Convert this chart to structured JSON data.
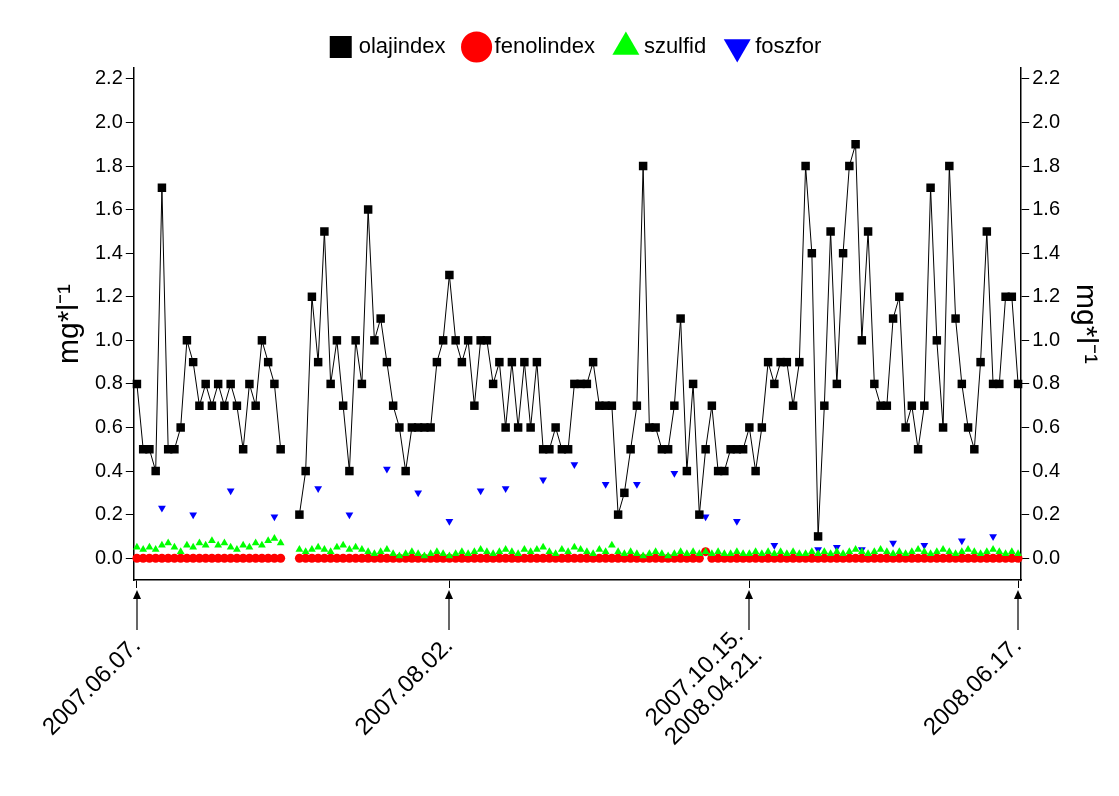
{
  "chart_data": {
    "type": "line",
    "ylabel": "mg*l⁻¹",
    "y2label": "mg*l⁻¹",
    "categories": [
      "2007.06.07.",
      null,
      null,
      null,
      null,
      null,
      null,
      null,
      null,
      null,
      null,
      null,
      null,
      null,
      null,
      null,
      null,
      null,
      null,
      null,
      null,
      null,
      null,
      null,
      null,
      null,
      null,
      null,
      null,
      null,
      null,
      null,
      null,
      null,
      null,
      null,
      null,
      null,
      null,
      null,
      null,
      null,
      null,
      null,
      null,
      null,
      null,
      null,
      null,
      null,
      "2007.08.02.",
      null,
      null,
      null,
      null,
      null,
      null,
      null,
      null,
      null,
      null,
      null,
      null,
      null,
      null,
      null,
      null,
      null,
      null,
      null,
      null,
      null,
      null,
      null,
      null,
      null,
      null,
      null,
      null,
      null,
      null,
      null,
      null,
      null,
      null,
      null,
      null,
      null,
      null,
      null,
      null,
      null,
      null,
      null,
      null,
      null,
      null,
      null,
      "2007.10.15.\n2008.04.21.",
      null,
      null,
      null,
      null,
      null,
      null,
      null,
      null,
      null,
      null,
      null,
      null,
      null,
      null,
      null,
      null,
      null,
      null,
      null,
      null,
      null,
      null,
      null,
      null,
      null,
      null,
      null,
      null,
      null,
      null,
      null,
      null,
      null,
      null,
      null,
      null,
      null,
      null,
      null,
      null,
      null,
      null,
      "2008.06.17."
    ],
    "series": [
      {
        "name": "olajindex",
        "color": "#000000",
        "marker": "square",
        "values": [
          0.8,
          0.5,
          0.5,
          0.4,
          1.7,
          0.5,
          0.5,
          0.6,
          1.0,
          0.9,
          0.7,
          0.8,
          0.7,
          0.8,
          0.7,
          0.8,
          0.7,
          0.5,
          0.8,
          0.7,
          1.0,
          0.9,
          0.8,
          0.5,
          null,
          null,
          0.2,
          0.4,
          1.2,
          0.9,
          1.5,
          0.8,
          1.0,
          0.7,
          0.4,
          1.0,
          0.8,
          1.6,
          1.0,
          1.1,
          0.9,
          0.7,
          0.6,
          0.4,
          0.6,
          0.6,
          0.6,
          0.6,
          0.9,
          1.0,
          1.3,
          1.0,
          0.9,
          1.0,
          0.7,
          1.0,
          1.0,
          0.8,
          0.9,
          0.6,
          0.9,
          0.6,
          0.9,
          0.6,
          0.9,
          0.5,
          0.5,
          0.6,
          0.5,
          0.5,
          0.8,
          0.8,
          0.8,
          0.9,
          0.7,
          0.7,
          0.7,
          0.2,
          0.3,
          0.5,
          0.7,
          1.8,
          0.6,
          0.6,
          0.5,
          0.5,
          0.7,
          1.1,
          0.4,
          0.8,
          0.2,
          0.5,
          0.7,
          0.4,
          0.4,
          0.5,
          0.5,
          0.5,
          0.6,
          0.4,
          0.6,
          0.9,
          0.8,
          0.9,
          0.9,
          0.7,
          0.9,
          1.8,
          1.4,
          0.1,
          0.7,
          1.5,
          0.8,
          1.4,
          1.8,
          1.9,
          1.0,
          1.5,
          0.8,
          0.7,
          0.7,
          1.1,
          1.2,
          0.6,
          0.7,
          0.5,
          0.7,
          1.7,
          1.0,
          0.6,
          1.8,
          1.1,
          0.8,
          0.6,
          0.5,
          0.9,
          1.5,
          0.8,
          0.8,
          1.2,
          1.2,
          0.8
        ]
      },
      {
        "name": "fenolindex",
        "type": "scatter",
        "color": "#ff0000",
        "marker": "circle",
        "values": [
          0,
          0,
          0,
          0,
          0,
          0,
          0,
          0,
          0,
          0,
          0,
          0,
          0,
          0,
          0,
          0,
          0,
          0,
          0,
          0,
          0,
          0,
          0,
          0,
          null,
          null,
          0,
          0,
          0,
          0,
          0,
          0,
          0,
          0,
          0,
          0,
          0,
          0,
          0,
          0,
          0,
          0,
          0,
          0,
          0,
          0,
          0,
          0,
          0,
          0,
          0,
          0,
          0,
          0,
          0,
          0,
          0,
          0,
          0,
          0,
          0,
          0,
          0,
          0,
          0,
          0,
          0,
          0,
          0,
          0,
          0,
          0,
          0,
          0,
          0,
          0,
          0,
          0,
          0,
          0,
          0,
          0,
          0,
          0,
          0,
          0,
          0,
          0,
          0,
          0,
          0,
          0.03,
          0,
          0,
          0,
          0,
          0,
          0,
          0,
          0,
          0,
          0,
          0,
          0,
          0,
          0,
          0,
          0,
          0,
          0,
          0,
          0,
          0,
          0,
          0,
          0,
          0,
          0,
          0,
          0,
          0,
          0,
          0,
          0,
          0,
          0,
          0,
          0,
          0,
          0,
          0,
          0,
          0,
          0,
          0,
          0,
          0,
          0,
          0,
          0,
          0,
          0
        ]
      },
      {
        "name": "szulfid",
        "type": "scatter",
        "color": "#00ff00",
        "marker": "triangle",
        "values": [
          0.05,
          0.04,
          0.05,
          0.04,
          0.06,
          0.07,
          0.05,
          0.03,
          0.06,
          0.05,
          0.07,
          0.06,
          0.08,
          0.06,
          0.07,
          0.05,
          0.04,
          0.06,
          0.05,
          0.07,
          0.06,
          0.08,
          0.09,
          0.07,
          null,
          null,
          0.04,
          0.03,
          0.04,
          0.05,
          0.04,
          0.03,
          0.05,
          0.06,
          0.04,
          0.05,
          0.04,
          0.03,
          0.02,
          0.03,
          0.04,
          0.02,
          0.01,
          0.02,
          0.03,
          0.02,
          0.01,
          0.02,
          0.03,
          0.02,
          0.01,
          0.02,
          0.03,
          0.02,
          0.03,
          0.04,
          0.03,
          0.02,
          0.03,
          0.04,
          0.03,
          0.02,
          0.04,
          0.03,
          0.04,
          0.05,
          0.03,
          0.02,
          0.04,
          0.03,
          0.05,
          0.04,
          0.03,
          0.02,
          0.04,
          0.03,
          0.06,
          0.03,
          0.02,
          0.03,
          0.02,
          0.01,
          0.02,
          0.03,
          0.02,
          0.01,
          0.02,
          0.03,
          0.02,
          0.03,
          0.02,
          0.03,
          0.02,
          0.03,
          0.02,
          0.02,
          0.03,
          0.02,
          0.02,
          0.03,
          0.02,
          0.03,
          0.02,
          0.03,
          0.02,
          0.03,
          0.02,
          0.02,
          0.03,
          0.02,
          0.03,
          0.02,
          0.03,
          0.02,
          0.03,
          0.04,
          0.03,
          0.02,
          0.03,
          0.04,
          0.03,
          0.02,
          0.03,
          0.02,
          0.03,
          0.04,
          0.03,
          0.02,
          0.03,
          0.04,
          0.03,
          0.02,
          0.03,
          0.04,
          0.03,
          0.02,
          0.03,
          0.04,
          0.03,
          0.02,
          0.03,
          0.02
        ]
      },
      {
        "name": "foszfor",
        "type": "scatter",
        "color": "#0000ff",
        "marker": "triangle",
        "values": [
          null,
          null,
          null,
          null,
          0.23,
          null,
          null,
          null,
          null,
          0.2,
          null,
          null,
          null,
          null,
          null,
          0.31,
          null,
          null,
          null,
          null,
          null,
          null,
          0.19,
          null,
          null,
          null,
          null,
          null,
          null,
          0.32,
          null,
          null,
          null,
          null,
          0.2,
          null,
          null,
          null,
          null,
          null,
          0.41,
          null,
          null,
          null,
          null,
          0.3,
          null,
          null,
          null,
          null,
          0.17,
          null,
          null,
          null,
          null,
          0.31,
          null,
          null,
          null,
          0.32,
          null,
          null,
          null,
          null,
          null,
          0.36,
          null,
          null,
          null,
          null,
          0.43,
          null,
          null,
          null,
          null,
          0.34,
          null,
          null,
          null,
          null,
          0.34,
          null,
          null,
          null,
          null,
          null,
          0.39,
          null,
          null,
          null,
          null,
          0.19,
          null,
          null,
          null,
          null,
          0.17,
          null,
          null,
          null,
          null,
          null,
          0.06,
          null,
          null,
          null,
          null,
          null,
          null,
          0.04,
          null,
          null,
          0.05,
          null,
          null,
          null,
          0.04,
          null,
          null,
          null,
          null,
          0.07,
          null,
          null,
          null,
          null,
          0.06,
          null,
          null,
          null,
          null,
          null,
          0.08,
          null,
          null,
          null,
          null,
          0.1,
          null,
          null,
          null,
          null
        ]
      }
    ],
    "ylim": [
      -0.1,
      2.25
    ],
    "y2lim": [
      -0.1,
      2.25
    ],
    "yticks": [
      {
        "value": 0,
        "label": "0.0"
      },
      {
        "value": 0.2,
        "label": "0.2"
      },
      {
        "value": 0.4,
        "label": "0.4"
      },
      {
        "value": 0.6,
        "label": "0.6"
      },
      {
        "value": 0.8,
        "label": "0.8"
      },
      {
        "value": 1,
        "label": "1.0"
      },
      {
        "value": 1.2,
        "label": "1.2"
      },
      {
        "value": 1.4,
        "label": "1.4"
      },
      {
        "value": 1.6,
        "label": "1.6"
      },
      {
        "value": 1.8,
        "label": "1.8"
      },
      {
        "value": 2,
        "label": "2.0"
      },
      {
        "value": 2.2,
        "label": "2.2"
      }
    ],
    "y2ticks": [
      {
        "value": 0,
        "label": "0.0"
      },
      {
        "value": 0.2,
        "label": "0.2"
      },
      {
        "value": 0.4,
        "label": "0.4"
      },
      {
        "value": 0.6,
        "label": "0.6"
      },
      {
        "value": 0.8,
        "label": "0.8"
      },
      {
        "value": 1,
        "label": "1.0"
      },
      {
        "value": 1.2,
        "label": "1.2"
      },
      {
        "value": 1.4,
        "label": "1.4"
      },
      {
        "value": 1.6,
        "label": "1.6"
      },
      {
        "value": 1.8,
        "label": "1.8"
      },
      {
        "value": 2,
        "label": "2.0"
      },
      {
        "value": 2.2,
        "label": "2.2"
      }
    ],
    "grid": false,
    "legend": "top",
    "line_style": "solid"
  }
}
